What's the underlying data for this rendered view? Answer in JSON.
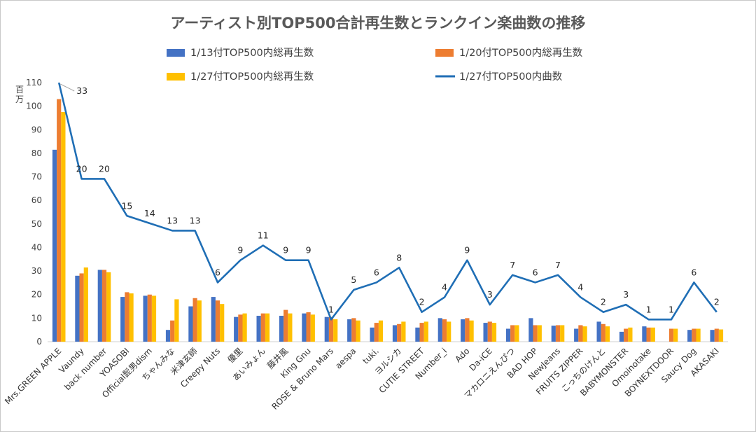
{
  "chart_data": {
    "type": "bar",
    "title": "アーティスト別TOP500合計再生数とランクイン楽曲数の推移",
    "ylabel": "百万",
    "ylim": [
      0,
      110
    ],
    "yticks": [
      0,
      10,
      20,
      30,
      40,
      50,
      60,
      70,
      80,
      90,
      100,
      110
    ],
    "categories": [
      "Mrs.GREEN APPLE",
      "Vaundy",
      "back number",
      "YOASOBI",
      "Official髭男dism",
      "ちゃんみな",
      "米津玄師",
      "Creepy Nuts",
      "優里",
      "あいみょん",
      "藤井風",
      "King Gnu",
      "ROSE & Bruno Mars",
      "aespa",
      "tuki.",
      "ヨルシカ",
      "CUTIE STREET",
      "Number_i",
      "Ado",
      "Da-iCE",
      "マカロニえんぴつ",
      "BAD HOP",
      "NewJeans",
      "FRUITS ZIPPER",
      "こっちのけんと",
      "BABYMONSTER",
      "Omoinotake",
      "BOYNEXTDOOR",
      "Saucy Dog",
      "AKASAKI"
    ],
    "series": [
      {
        "name": "1/13付TOP500内総再生数",
        "type": "bar",
        "color": "#4472C4",
        "values": [
          81.5,
          28,
          30.5,
          19,
          19.5,
          5,
          15,
          19,
          10.5,
          11,
          11,
          12,
          10.5,
          9.5,
          6,
          7,
          6,
          10,
          9.5,
          8,
          5.5,
          10,
          6.8,
          5.5,
          8.5,
          4.2,
          6.5,
          0,
          5,
          5
        ]
      },
      {
        "name": "1/20付TOP500内総再生数",
        "type": "bar",
        "color": "#ED7D31",
        "values": [
          103,
          29,
          30.5,
          21,
          20,
          9,
          18.5,
          17.5,
          11.5,
          12,
          13.5,
          12.5,
          10.5,
          10,
          8,
          7.5,
          8,
          9.5,
          10,
          8.5,
          7,
          7,
          7,
          7,
          7.5,
          5.5,
          6,
          5.5,
          5.5,
          5.5
        ]
      },
      {
        "name": "1/27付TOP500内総再生数",
        "type": "bar",
        "color": "#FFC000",
        "values": [
          97.5,
          31.5,
          29.5,
          20.5,
          19.5,
          18,
          17.5,
          16,
          12,
          12,
          12,
          11.5,
          9.5,
          9,
          9,
          8.5,
          8.5,
          8.5,
          9,
          8,
          7,
          7,
          7,
          6.5,
          6.5,
          6,
          6,
          5.5,
          5.5,
          5.2
        ]
      },
      {
        "name": "1/27付TOP500内曲数",
        "type": "line",
        "color": "#1F6EB5",
        "values": [
          33,
          20,
          20,
          15,
          14,
          13,
          13,
          6,
          9,
          11,
          9,
          9,
          1,
          5,
          6,
          8,
          2,
          4,
          9,
          3,
          7,
          6,
          7,
          4,
          2,
          3,
          1,
          1,
          6,
          2
        ]
      }
    ],
    "line_axis": {
      "min": -2,
      "max": 33
    },
    "legend_position": "top"
  }
}
